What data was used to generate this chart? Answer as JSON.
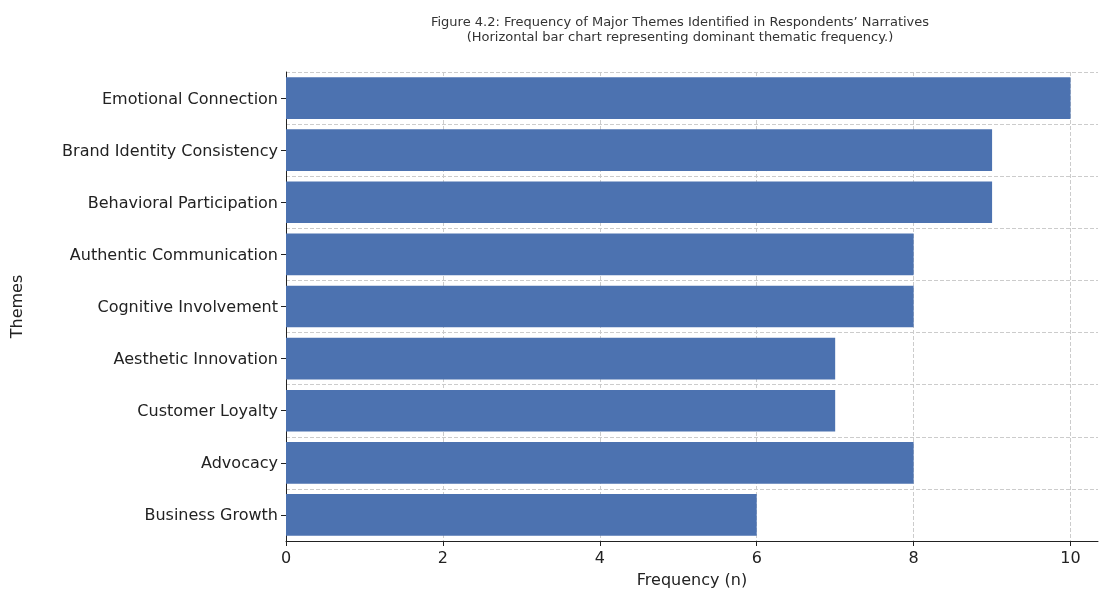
{
  "chart_data": {
    "type": "bar",
    "orientation": "horizontal",
    "title": "Figure 4.2: Frequency of Major Themes Identified in Respondents’ Narratives",
    "subtitle": "(Horizontal bar chart representing dominant thematic frequency.)",
    "xlabel": "Frequency (n)",
    "ylabel": "Themes",
    "categories": [
      "Emotional Connection",
      "Brand Identity Consistency",
      "Behavioral Participation",
      "Authentic Communication",
      "Cognitive Involvement",
      "Aesthetic Innovation",
      "Customer Loyalty",
      "Advocacy",
      "Business Growth"
    ],
    "values": [
      10,
      9,
      9,
      8,
      8,
      7,
      7,
      8,
      6
    ],
    "color": "#4c72b0",
    "xlim": [
      0,
      10.35
    ],
    "xticks": [
      0,
      2,
      4,
      6,
      8,
      10
    ],
    "grid": true
  }
}
